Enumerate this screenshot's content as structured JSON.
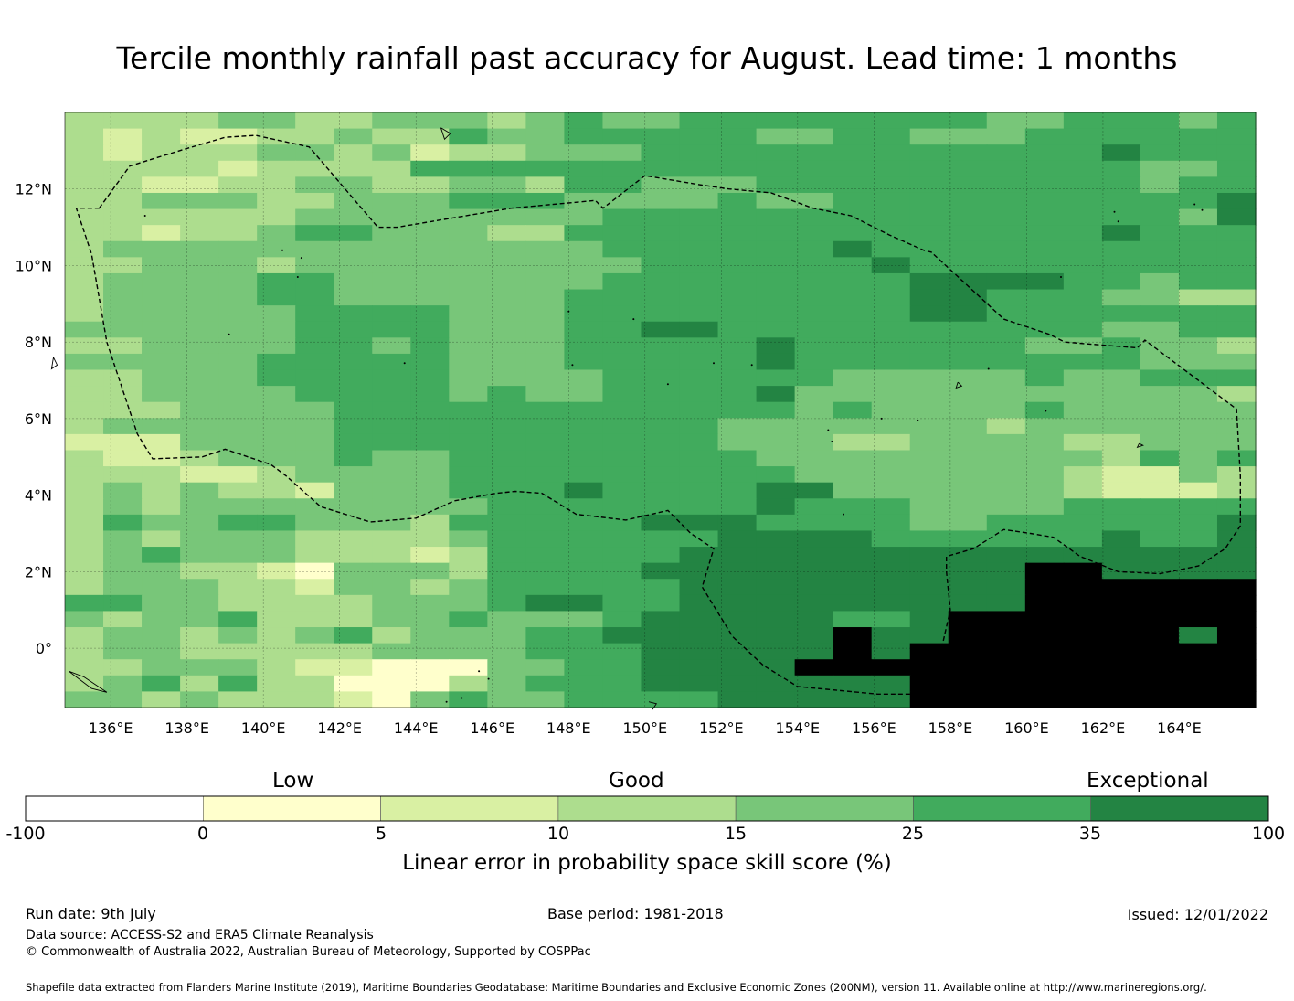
{
  "title": "Tercile monthly rainfall past accuracy for August. Lead time: 1 months",
  "map": {
    "lon_range": [
      134.8,
      166.0
    ],
    "lat_range": [
      -1.55,
      14.0
    ],
    "lon_ticks": [
      "136°E",
      "138°E",
      "140°E",
      "142°E",
      "144°E",
      "146°E",
      "148°E",
      "150°E",
      "152°E",
      "154°E",
      "156°E",
      "158°E",
      "160°E",
      "162°E",
      "164°E"
    ],
    "lat_ticks": [
      "12°N",
      "10°N",
      "8°N",
      "6°N",
      "4°N",
      "2°N",
      "0°"
    ]
  },
  "chart_data": {
    "type": "heatmap",
    "title": "Tercile monthly rainfall past accuracy for August. Lead time: 1 months",
    "x_range_deg_e": [
      134.8,
      166.0
    ],
    "y_range_deg": [
      -1.55,
      14.0
    ],
    "grid": true,
    "colorbar": {
      "bounds": [
        -100,
        0,
        5,
        10,
        15,
        25,
        35,
        100
      ],
      "colors": [
        "#ffffff",
        "#ffffcc",
        "#d9f0a3",
        "#addd8e",
        "#78c679",
        "#41ab5d",
        "#238443"
      ],
      "title": "Linear error in probability space skill score (%)",
      "category_labels": [
        "Low",
        "Good",
        "Exceptional"
      ]
    },
    "cells_class_by_row_north_to_south": [
      "3333443344434544555555554455545",
      "3232233433544555554455444555555",
      "3233344342334445555555555556555",
      "3333233335555555555555555555445",
      "3322334433443554445555555555455",
      "3344433444555444454455555555556",
      "3333334444444455555555555555546",
      "3323345544433555555555555556555",
      "3444444444444455555565555555555",
      "3344434444444445555556555555555",
      "3444455444444455555555666655455",
      "3444455444444555555555665554433",
      "3444445555444555555555665555555",
      "4444445555444556655555555554455",
      "3344445545444555556555555445443",
      "4444455555444555556555555555444",
      "3344455555444455555544444544555",
      "3344445555454455556444444444443",
      "3334444555555555555454444544444",
      "3444444555555555544444443444444",
      "2224444555555555544433444433444",
      "3223444544555555554444444443545",
      "3332234444555555555444444432243",
      "3434332444555655556644444432223",
      "3434444444455555556555444455555",
      "3544554443555556665555445555556",
      "3434443333455555566665555556556",
      "3454443332355555666666666666666",
      "3443321444355556666666666776666",
      "3444332443455555666666666777777",
      "5544333344456655666666666777777",
      "4344533344544456666655677777777",
      "3443434534445566666676677777767",
      "3443333344445556666676777777777",
      "3344432211144556666777777777777",
      "3453533111345556666666777777777",
      "4434333214544555566666777777777"
    ]
  },
  "colorbar": {
    "category_labels": [
      "Low",
      "Good",
      "Exceptional"
    ],
    "tick_labels": [
      "-100",
      "0",
      "5",
      "10",
      "15",
      "25",
      "35",
      "100"
    ],
    "title": "Linear error in probability space skill score (%)"
  },
  "footer": {
    "run_date": "Run date: 9th July",
    "base_period": "Base period: 1981-2018",
    "issued": "Issued: 12/01/2022",
    "data_source": "Data source: ACCESS-S2 and ERA5 Climate Reanalysis",
    "copyright": "© Commonwealth of Australia 2022, Australian Bureau of Meteorology, Supported by COSPPac",
    "shapefile": "Shapefile data extracted from Flanders Marine Institute (2019), Maritime Boundaries Geodatabase: Maritime Boundaries and Exclusive Economic Zones (200NM), version 11. Available online at http://www.marineregions.org/."
  }
}
